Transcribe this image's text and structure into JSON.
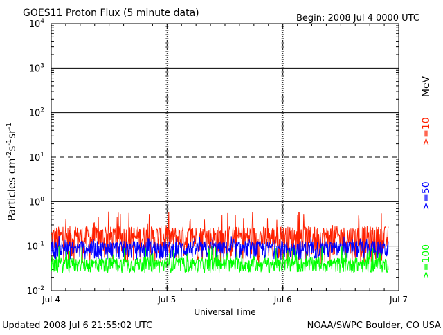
{
  "chart_data": {
    "type": "line",
    "title": "GOES11 Proton Flux (5 minute data)",
    "begin_label": "Begin: 2008 Jul 4 0000 UTC",
    "xlabel": "Universal Time",
    "ylabel_parts": [
      "Particles cm",
      "-2",
      "s",
      "-1",
      "sr",
      "-1"
    ],
    "x_ticks": [
      "Jul 4",
      "Jul 5",
      "Jul 6",
      "Jul 7"
    ],
    "x_range_days": [
      0,
      3
    ],
    "y_scale": "log",
    "ylim": [
      0.01,
      10000
    ],
    "y_ticks": [
      {
        "base": "10",
        "exp": "-2",
        "value": 0.01
      },
      {
        "base": "10",
        "exp": "-1",
        "value": 0.1
      },
      {
        "base": "10",
        "exp": "0",
        "value": 1
      },
      {
        "base": "10",
        "exp": "1",
        "value": 10
      },
      {
        "base": "10",
        "exp": "2",
        "value": 100
      },
      {
        "base": "10",
        "exp": "3",
        "value": 1000
      },
      {
        "base": "10",
        "exp": "4",
        "value": 10000
      }
    ],
    "grid": "horizontal lines at each decade (dashed at 10^1), dashed vertical day markers",
    "unit_label": "MeV",
    "series": [
      {
        "name": ">=10",
        "color": "#ff2000",
        "baseline": 0.16,
        "spread": 0.12,
        "spike_max": 0.6
      },
      {
        "name": ">=50",
        "color": "#0000ff",
        "baseline": 0.09,
        "spread": 0.04,
        "spike_max": 0.17
      },
      {
        "name": ">=100",
        "color": "#00ff00",
        "baseline": 0.04,
        "spread": 0.015,
        "spike_max": 0.1
      }
    ],
    "data_end_day": 2.91
  },
  "footer": {
    "updated": "Updated 2008 Jul  6 21:55:02 UTC",
    "source": "NOAA/SWPC Boulder, CO USA"
  }
}
